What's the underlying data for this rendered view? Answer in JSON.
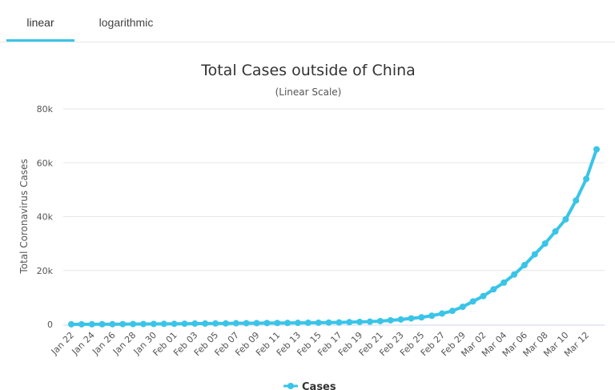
{
  "tabs": [
    {
      "label": "linear",
      "active": true
    },
    {
      "label": "logarithmic",
      "active": false
    }
  ],
  "accent_color": "#3ac4e8",
  "chart_data": {
    "type": "line",
    "title": "Total Cases outside of China",
    "subtitle": "(Linear Scale)",
    "xlabel": "",
    "ylabel": "Total Coronavirus Cases",
    "ylim": [
      0,
      80000
    ],
    "yticks": [
      0,
      20000,
      40000,
      60000,
      80000
    ],
    "ytick_labels": [
      "0",
      "20k",
      "40k",
      "60k",
      "80k"
    ],
    "grid": true,
    "legend": "bottom-center",
    "x": [
      "Jan 22",
      "Jan 23",
      "Jan 24",
      "Jan 25",
      "Jan 26",
      "Jan 27",
      "Jan 28",
      "Jan 29",
      "Jan 30",
      "Jan 31",
      "Feb 01",
      "Feb 02",
      "Feb 03",
      "Feb 04",
      "Feb 05",
      "Feb 06",
      "Feb 07",
      "Feb 08",
      "Feb 09",
      "Feb 10",
      "Feb 11",
      "Feb 12",
      "Feb 13",
      "Feb 14",
      "Feb 15",
      "Feb 16",
      "Feb 17",
      "Feb 18",
      "Feb 19",
      "Feb 20",
      "Feb 21",
      "Feb 22",
      "Feb 23",
      "Feb 24",
      "Feb 25",
      "Feb 26",
      "Feb 27",
      "Feb 28",
      "Feb 29",
      "Mar 01",
      "Mar 02",
      "Mar 03",
      "Mar 04",
      "Mar 05",
      "Mar 06",
      "Mar 07",
      "Mar 08",
      "Mar 09",
      "Mar 10",
      "Mar 11",
      "Mar 12",
      "Mar 13"
    ],
    "xtick_labels": [
      "Jan 22",
      "Jan 24",
      "Jan 26",
      "Jan 28",
      "Jan 30",
      "Feb 01",
      "Feb 03",
      "Feb 05",
      "Feb 07",
      "Feb 09",
      "Feb 11",
      "Feb 13",
      "Feb 15",
      "Feb 17",
      "Feb 19",
      "Feb 21",
      "Feb 23",
      "Feb 25",
      "Feb 27",
      "Feb 29",
      "Mar 02",
      "Mar 04",
      "Mar 06",
      "Mar 08",
      "Mar 10",
      "Mar 12"
    ],
    "series": [
      {
        "name": "Cases",
        "color": "#3ac4e8",
        "values": [
          10,
          15,
          25,
          40,
          55,
          80,
          100,
          120,
          150,
          170,
          200,
          240,
          280,
          300,
          320,
          350,
          400,
          420,
          450,
          480,
          500,
          520,
          550,
          580,
          600,
          650,
          700,
          800,
          900,
          1000,
          1200,
          1500,
          1800,
          2200,
          2600,
          3200,
          4000,
          5000,
          6500,
          8500,
          10500,
          13000,
          15500,
          18500,
          22000,
          26000,
          30000,
          34500,
          39000,
          46000,
          54000,
          65000
        ]
      }
    ]
  }
}
